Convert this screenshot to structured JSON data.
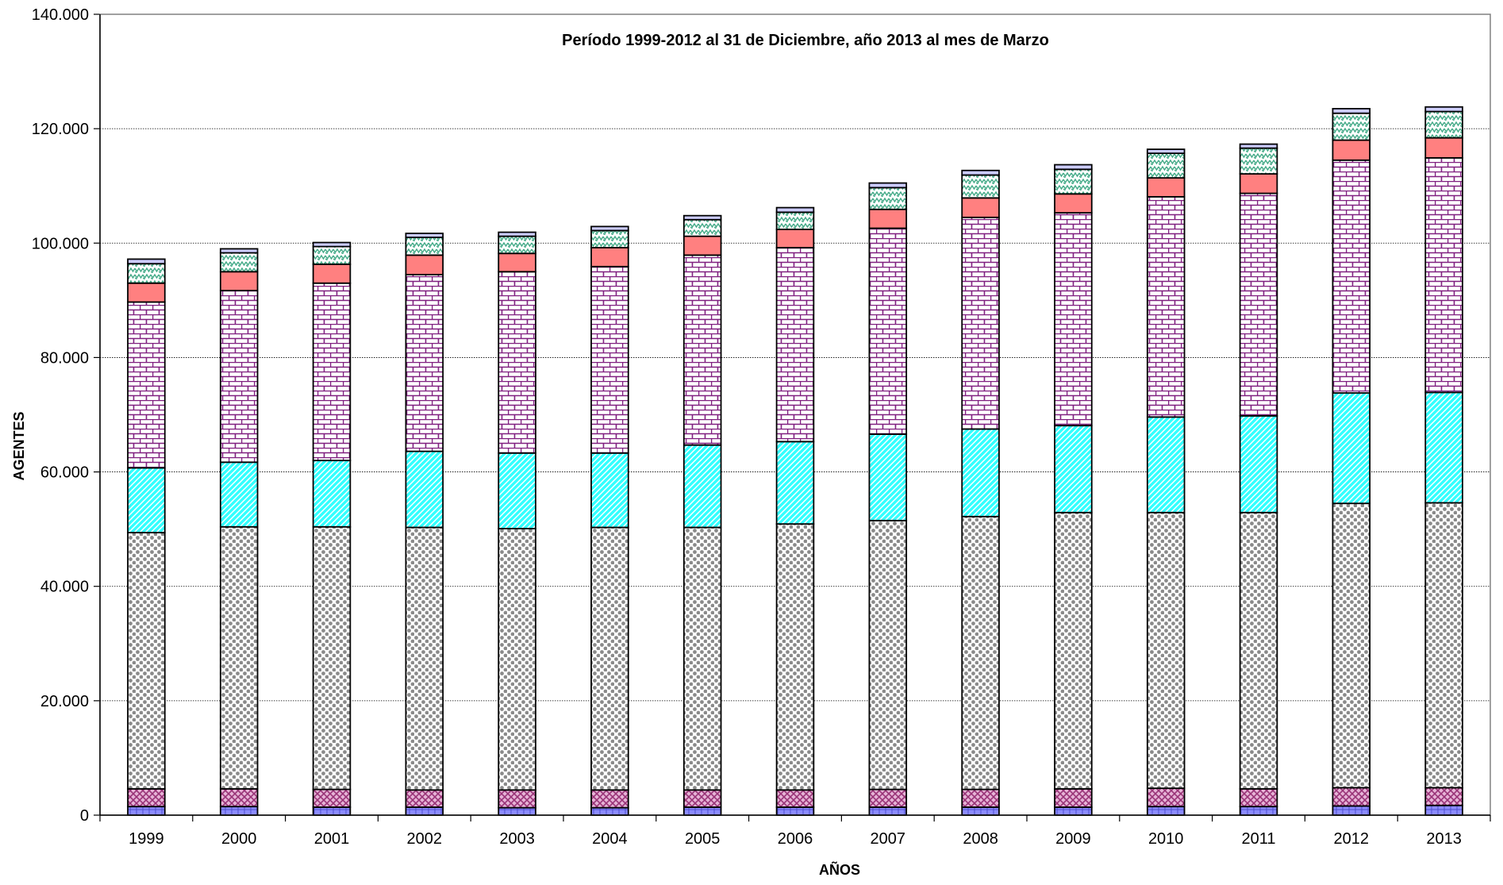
{
  "chart_data": {
    "type": "bar",
    "stacked": true,
    "title": "Período 1999-2012 al 31 de Diciembre, año 2013 al mes de Marzo",
    "xlabel": "AÑOS",
    "ylabel": "AGENTES",
    "ylim": [
      0,
      140000
    ],
    "y_ticks": [
      "0",
      "20.000",
      "40.000",
      "60.000",
      "80.000",
      "100.000",
      "120.000",
      "140.000"
    ],
    "y_tick_values": [
      0,
      20000,
      40000,
      60000,
      80000,
      100000,
      120000,
      140000
    ],
    "grid": true,
    "legend": "none",
    "categories": [
      "1999",
      "2000",
      "2001",
      "2002",
      "2003",
      "2004",
      "2005",
      "2006",
      "2007",
      "2008",
      "2009",
      "2010",
      "2011",
      "2012",
      "2013"
    ],
    "series": [
      {
        "color": "#8c8cff",
        "pattern": "plaid",
        "values": [
          1500,
          1500,
          1400,
          1400,
          1300,
          1300,
          1400,
          1400,
          1400,
          1400,
          1400,
          1500,
          1500,
          1600,
          1700
        ]
      },
      {
        "color": "#cc66aa",
        "pattern": "checker",
        "values": [
          3100,
          3100,
          3100,
          3000,
          3100,
          3100,
          3000,
          3000,
          3100,
          3100,
          3200,
          3200,
          3100,
          3200,
          3100
        ]
      },
      {
        "color": "#999999",
        "pattern": "circles",
        "values": [
          44800,
          45800,
          45900,
          45900,
          45700,
          45900,
          45900,
          46500,
          47000,
          47700,
          48300,
          48200,
          48300,
          49700,
          49800
        ]
      },
      {
        "color": "#33ffff",
        "pattern": "diagonal",
        "values": [
          11300,
          11300,
          11600,
          13300,
          13200,
          13000,
          14400,
          14400,
          15100,
          15300,
          15200,
          16700,
          16900,
          19300,
          19300
        ]
      },
      {
        "color": "#993399",
        "pattern": "brick",
        "values": [
          29000,
          30000,
          31000,
          30900,
          31700,
          32600,
          33200,
          33900,
          36000,
          37000,
          37200,
          38500,
          38900,
          40700,
          41000
        ]
      },
      {
        "color": "#ff8080",
        "pattern": "solid",
        "values": [
          3300,
          3300,
          3300,
          3400,
          3200,
          3300,
          3300,
          3200,
          3300,
          3400,
          3300,
          3300,
          3400,
          3500,
          3500
        ]
      },
      {
        "color": "#66bb99",
        "pattern": "zigzag",
        "values": [
          3400,
          3300,
          3100,
          3100,
          3000,
          3000,
          2900,
          3000,
          3800,
          4000,
          4300,
          4300,
          4500,
          4700,
          4600
        ]
      },
      {
        "color": "#ccccff",
        "pattern": "solid",
        "values": [
          800,
          700,
          700,
          700,
          700,
          700,
          700,
          800,
          800,
          800,
          800,
          700,
          700,
          800,
          800
        ]
      }
    ]
  }
}
